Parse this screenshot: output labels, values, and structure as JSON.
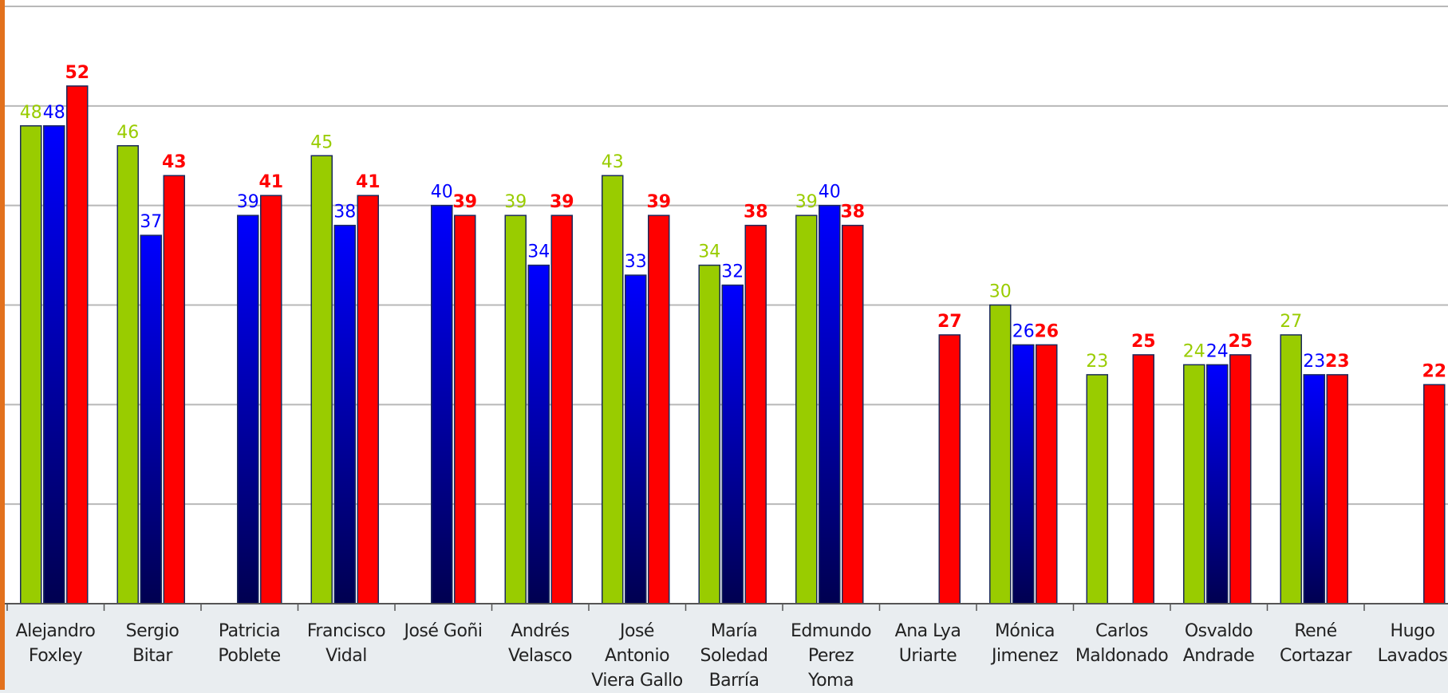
{
  "chart_data": {
    "type": "bar",
    "categories": [
      "Alejandro\nFoxley",
      "Sergio Bitar",
      "Patricia\nPoblete",
      "Francisco\nVidal",
      "José Goñi",
      "Andrés\nVelasco",
      "José\nAntonio\nViera Gallo",
      "María\nSoledad\nBarría",
      "Edmundo\nPerez\nYoma",
      "Ana Lya\nUriarte",
      "Mónica\nJimenez",
      "Carlos\nMaldonado",
      "Osvaldo\nAndrade",
      "René\nCortazar",
      "Hugo\nLavados"
    ],
    "series": [
      {
        "color": "#99cc00",
        "values": [
          48,
          46,
          null,
          45,
          null,
          39,
          43,
          34,
          39,
          null,
          30,
          23,
          24,
          27,
          null
        ]
      },
      {
        "color": "#0000ff",
        "gradient_to": "#000050",
        "values": [
          48,
          37,
          39,
          38,
          40,
          34,
          33,
          32,
          40,
          null,
          26,
          null,
          24,
          23,
          null
        ]
      },
      {
        "color": "#ff0000",
        "label_bold": true,
        "values": [
          52,
          43,
          41,
          41,
          39,
          39,
          39,
          38,
          38,
          27,
          26,
          25,
          25,
          23,
          22
        ]
      }
    ],
    "ylim": [
      0,
      60
    ],
    "yticks": [
      10,
      20,
      30,
      40,
      50,
      60
    ],
    "grid": true
  }
}
